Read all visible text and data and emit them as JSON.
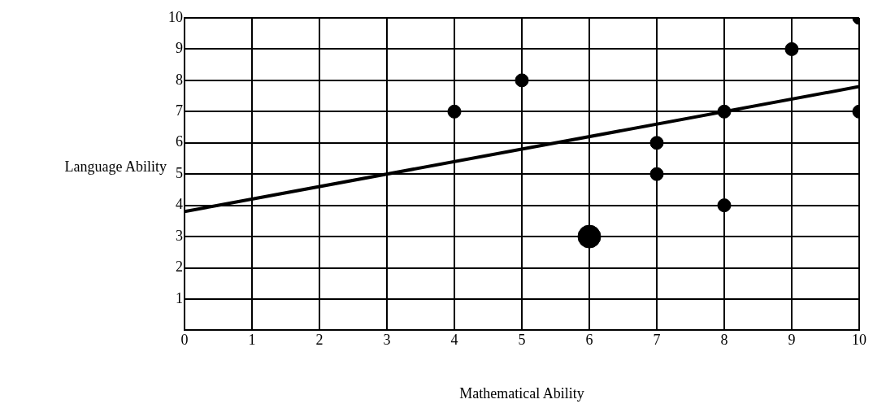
{
  "chart_data": {
    "type": "bubble",
    "xlabel": "Mathematical Ability",
    "ylabel": "Language Ability",
    "xlim": [
      0,
      10
    ],
    "xticks": [
      0,
      1,
      2,
      3,
      4,
      5,
      6,
      7,
      8,
      9,
      10
    ],
    "ylim": [
      0,
      10
    ],
    "yticks": [
      1,
      2,
      3,
      4,
      5,
      6,
      7,
      8,
      9,
      10
    ],
    "grid": true,
    "legend": false,
    "marker": "circle",
    "series": [
      {
        "color": "#000000",
        "x": [
          4,
          5,
          6,
          7,
          7,
          8,
          8,
          9,
          10,
          10
        ],
        "values": [
          7,
          8,
          3,
          6,
          5,
          7,
          4,
          9,
          10,
          7
        ],
        "sizes": [
          0.33,
          0.33,
          1,
          0.33,
          0.33,
          0.33,
          0.33,
          0.33,
          0.33,
          0.33
        ]
      },
      {
        "type": "line",
        "color": "#000000",
        "line_style": "solid",
        "marker": "none",
        "x": [
          0,
          10
        ],
        "values": [
          3.8,
          7.8
        ]
      }
    ]
  }
}
